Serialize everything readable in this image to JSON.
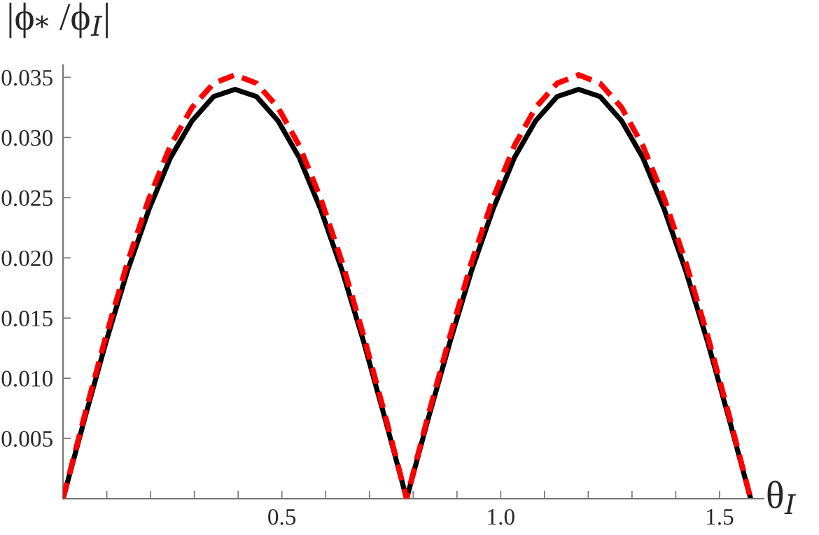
{
  "chart_data": {
    "type": "line",
    "ylabel": "|ϕ$_{*}$ /ϕ$_{I}$|",
    "xlabel": "θ$_{I}$",
    "x": [
      0,
      0.049,
      0.098,
      0.147,
      0.196,
      0.245,
      0.295,
      0.344,
      0.393,
      0.442,
      0.491,
      0.54,
      0.589,
      0.638,
      0.687,
      0.736,
      0.785,
      0.834,
      0.884,
      0.933,
      0.982,
      1.031,
      1.08,
      1.129,
      1.178,
      1.227,
      1.276,
      1.325,
      1.374,
      1.423,
      1.473,
      1.522,
      1.571
    ],
    "series": [
      {
        "color": "#000000",
        "line_style": "solid",
        "values": [
          0,
          0.0066,
          0.013,
          0.0189,
          0.024,
          0.0283,
          0.0314,
          0.0334,
          0.034,
          0.0334,
          0.0314,
          0.0283,
          0.024,
          0.0189,
          0.013,
          0.0066,
          0,
          0.0066,
          0.013,
          0.0189,
          0.024,
          0.0283,
          0.0314,
          0.0334,
          0.034,
          0.0334,
          0.0314,
          0.0283,
          0.024,
          0.0189,
          0.013,
          0.0066,
          0
        ]
      },
      {
        "color": "#ff0000",
        "line_style": "dashed",
        "values": [
          0,
          0.0069,
          0.0135,
          0.0196,
          0.0249,
          0.0293,
          0.0325,
          0.0345,
          0.0352,
          0.0345,
          0.0325,
          0.0293,
          0.0249,
          0.0196,
          0.0135,
          0.0069,
          0,
          0.0069,
          0.0135,
          0.0196,
          0.0249,
          0.0293,
          0.0325,
          0.0345,
          0.0352,
          0.0345,
          0.0325,
          0.0293,
          0.0249,
          0.0196,
          0.0135,
          0.0069,
          0
        ]
      }
    ],
    "xlim": [
      0,
      1.6
    ],
    "ylim": [
      0,
      0.036
    ],
    "xticks": [
      {
        "value": 0.1,
        "label": null
      },
      {
        "value": 0.2,
        "label": null
      },
      {
        "value": 0.3,
        "label": null
      },
      {
        "value": 0.4,
        "label": null
      },
      {
        "value": 0.5,
        "label": "0.5"
      },
      {
        "value": 0.6,
        "label": null
      },
      {
        "value": 0.7,
        "label": null
      },
      {
        "value": 0.8,
        "label": null
      },
      {
        "value": 0.9,
        "label": null
      },
      {
        "value": 1.0,
        "label": "1.0"
      },
      {
        "value": 1.1,
        "label": null
      },
      {
        "value": 1.2,
        "label": null
      },
      {
        "value": 1.3,
        "label": null
      },
      {
        "value": 1.4,
        "label": null
      },
      {
        "value": 1.5,
        "label": "1.5"
      }
    ],
    "yticks": [
      {
        "value": 0.005,
        "label": "0.005"
      },
      {
        "value": 0.01,
        "label": "0.010"
      },
      {
        "value": 0.015,
        "label": "0.015"
      },
      {
        "value": 0.02,
        "label": "0.020"
      },
      {
        "value": 0.025,
        "label": "0.025"
      },
      {
        "value": 0.03,
        "label": "0.030"
      },
      {
        "value": 0.035,
        "label": "0.035"
      }
    ],
    "grid": false
  }
}
